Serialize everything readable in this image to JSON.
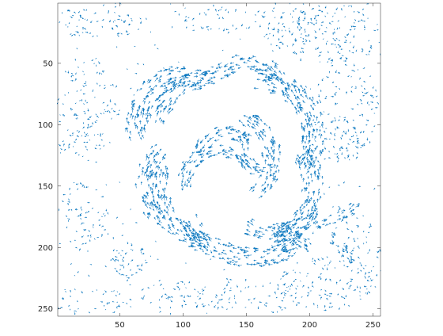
{
  "chart_data": {
    "type": "quiver",
    "title": "",
    "xlabel": "",
    "ylabel": "",
    "xlim": [
      1,
      256
    ],
    "ylim": [
      256,
      1
    ],
    "y_axis_direction": "reversed",
    "grid": false,
    "legend": "none",
    "arrow_color": "#0072BD",
    "axis_color": "#262626",
    "x_ticks": [
      50,
      100,
      150,
      200,
      250
    ],
    "y_ticks": [
      50,
      100,
      150,
      200,
      250
    ],
    "field_structures": [
      {
        "kind": "arc",
        "cx": 103,
        "cy": 100,
        "r": 40,
        "a0": 160,
        "a1": 290,
        "width": 9,
        "flow": "ccw"
      },
      {
        "kind": "arc",
        "cx": 128,
        "cy": 112,
        "r": 52,
        "a0": 195,
        "a1": 265,
        "width": 8,
        "flow": "ccw"
      },
      {
        "kind": "arc",
        "cx": 150,
        "cy": 88,
        "r": 38,
        "a0": 235,
        "a1": 345,
        "width": 7,
        "flow": "cw"
      },
      {
        "kind": "arc",
        "cx": 158,
        "cy": 108,
        "r": 45,
        "a0": 270,
        "a1": 400,
        "width": 9,
        "flow": "cw"
      },
      {
        "kind": "arc",
        "cx": 130,
        "cy": 128,
        "r": 40,
        "a0": 300,
        "a1": 410,
        "width": 7,
        "flow": "cw"
      },
      {
        "kind": "arc",
        "cx": 150,
        "cy": 150,
        "r": 52,
        "a0": 330,
        "a1": 425,
        "width": 9,
        "flow": "cw"
      },
      {
        "kind": "arc",
        "cx": 170,
        "cy": 150,
        "r": 38,
        "a0": 20,
        "a1": 120,
        "width": 7,
        "flow": "ccw"
      },
      {
        "kind": "arc",
        "cx": 155,
        "cy": 150,
        "r": 58,
        "a0": 55,
        "a1": 150,
        "width": 8,
        "flow": "ccw"
      },
      {
        "kind": "arc",
        "cx": 130,
        "cy": 148,
        "r": 50,
        "a0": 100,
        "a1": 195,
        "width": 8,
        "flow": "ccw"
      },
      {
        "kind": "arc",
        "cx": 110,
        "cy": 150,
        "r": 40,
        "a0": 130,
        "a1": 225,
        "width": 7,
        "flow": "ccw"
      },
      {
        "kind": "arc",
        "cx": 128,
        "cy": 150,
        "r": 28,
        "a0": 180,
        "a1": 330,
        "width": 6,
        "flow": "cw"
      },
      {
        "kind": "arc",
        "cx": 135,
        "cy": 128,
        "r": 22,
        "a0": 200,
        "a1": 320,
        "width": 6,
        "flow": "cw"
      },
      {
        "kind": "arc",
        "cx": 165,
        "cy": 120,
        "r": 18,
        "a0": 60,
        "a1": 220,
        "width": 5,
        "flow": "ccw"
      },
      {
        "kind": "line",
        "x0": 168,
        "y0": 180,
        "x1": 200,
        "y1": 200,
        "width": 6
      },
      {
        "kind": "line",
        "x0": 205,
        "y0": 185,
        "x1": 240,
        "y1": 165,
        "width": 5
      },
      {
        "kind": "line",
        "x0": 215,
        "y0": 190,
        "x1": 235,
        "y1": 210,
        "width": 4
      },
      {
        "kind": "line",
        "x0": 95,
        "y0": 180,
        "x1": 120,
        "y1": 205,
        "width": 4
      }
    ],
    "noise_regions": [
      {
        "cx": 35,
        "cy": 15,
        "rx": 35,
        "ry": 15,
        "density": 0.55
      },
      {
        "cx": 115,
        "cy": 12,
        "rx": 25,
        "ry": 12,
        "density": 0.35
      },
      {
        "cx": 170,
        "cy": 20,
        "rx": 40,
        "ry": 18,
        "density": 0.4
      },
      {
        "cx": 215,
        "cy": 25,
        "rx": 45,
        "ry": 25,
        "density": 0.55
      },
      {
        "cx": 25,
        "cy": 80,
        "rx": 25,
        "ry": 35,
        "density": 0.45
      },
      {
        "cx": 20,
        "cy": 115,
        "rx": 20,
        "ry": 15,
        "density": 0.55
      },
      {
        "cx": 228,
        "cy": 85,
        "rx": 28,
        "ry": 40,
        "density": 0.45
      },
      {
        "cx": 225,
        "cy": 115,
        "rx": 25,
        "ry": 15,
        "density": 0.55
      },
      {
        "cx": 20,
        "cy": 175,
        "rx": 20,
        "ry": 30,
        "density": 0.45
      },
      {
        "cx": 58,
        "cy": 210,
        "rx": 15,
        "ry": 15,
        "density": 0.9
      },
      {
        "cx": 30,
        "cy": 245,
        "rx": 30,
        "ry": 12,
        "density": 0.45
      },
      {
        "cx": 90,
        "cy": 240,
        "rx": 30,
        "ry": 15,
        "density": 0.4
      },
      {
        "cx": 150,
        "cy": 240,
        "rx": 45,
        "ry": 15,
        "density": 0.5
      },
      {
        "cx": 215,
        "cy": 230,
        "rx": 40,
        "ry": 22,
        "density": 0.55
      },
      {
        "cx": 240,
        "cy": 200,
        "rx": 16,
        "ry": 25,
        "density": 0.5
      }
    ]
  }
}
